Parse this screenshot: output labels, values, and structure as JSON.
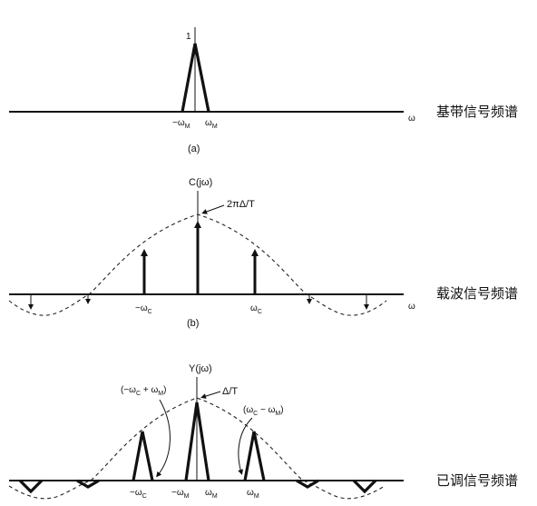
{
  "panel_a": {
    "peak_label": "1",
    "tick_neg": "−ω",
    "tick_neg_sub": "M",
    "tick_pos": "ω",
    "tick_pos_sub": "M",
    "axis_label": "ω",
    "caption": "(a)",
    "side_label": "基带信号频谱"
  },
  "panel_b": {
    "title": "C(jω)",
    "peak_label": "2πΔ/T",
    "tick_neg": "−ω",
    "tick_neg_sub": "C",
    "tick_pos": "ω",
    "tick_pos_sub": "C",
    "axis_label": "ω",
    "caption": "(b)",
    "side_label": "载波信号频谱"
  },
  "panel_c": {
    "title": "Y(jω)",
    "peak_label": "Δ/T",
    "left_annotation": "(−ω",
    "left_annotation_sub1": "C",
    "left_annotation_mid": " + ω",
    "left_annotation_sub2": "M",
    "left_annotation_end": ")",
    "right_annotation": "(ω",
    "right_annotation_sub1": "C",
    "right_annotation_mid": " − ω",
    "right_annotation_sub2": "M",
    "right_annotation_end": ")",
    "tick_neg_c": "−ω",
    "tick_neg_c_sub": "C",
    "tick_neg_m": "−ω",
    "tick_neg_m_sub": "M",
    "tick_pos_m1": "ω",
    "tick_pos_m1_sub": "M",
    "tick_pos_m2": "ω",
    "tick_pos_m2_sub": "M",
    "side_label": "已调信号频谱"
  }
}
